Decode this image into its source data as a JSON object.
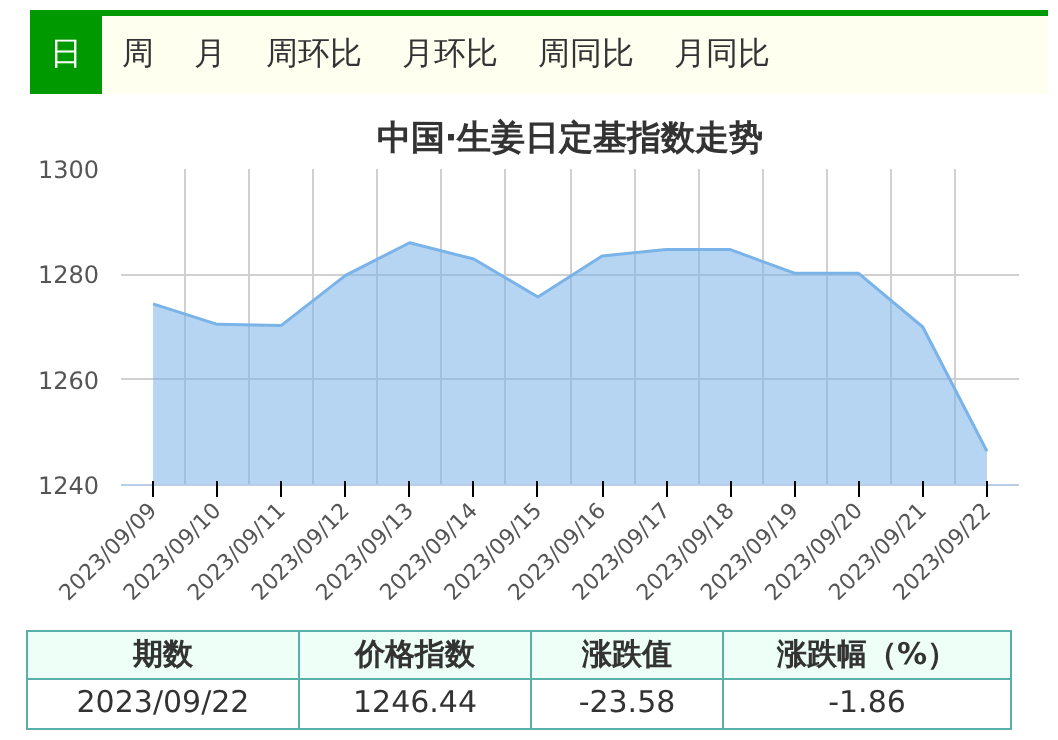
{
  "chart_data": {
    "type": "area",
    "title": "中国·生姜日定基指数走势",
    "categories": [
      "2023/09/09",
      "2023/09/10",
      "2023/09/11",
      "2023/09/12",
      "2023/09/13",
      "2023/09/14",
      "2023/09/15",
      "2023/09/16",
      "2023/09/17",
      "2023/09/18",
      "2023/09/19",
      "2023/09/20",
      "2023/09/21",
      "2023/09/22"
    ],
    "series": [
      {
        "color": "#7ab3e8",
        "values": [
          1274.4,
          1270.5,
          1270.3,
          1279.8,
          1286.0,
          1282.9,
          1275.7,
          1283.5,
          1284.7,
          1284.7,
          1280.2,
          1280.2,
          1270.0,
          1246.4
        ]
      }
    ],
    "ylim": [
      1240,
      1300
    ],
    "yticks": [
      1240,
      1260,
      1280,
      1300
    ],
    "grid": true,
    "annotations": [
      "日",
      "周",
      "月",
      "周环比",
      "月环比",
      "周同比",
      "月同比",
      "期数",
      "价格指数",
      "涨跌值",
      "涨跌幅（%）",
      "2023/09/22",
      "1246.44",
      "-23.58",
      "-1.86"
    ]
  }
}
